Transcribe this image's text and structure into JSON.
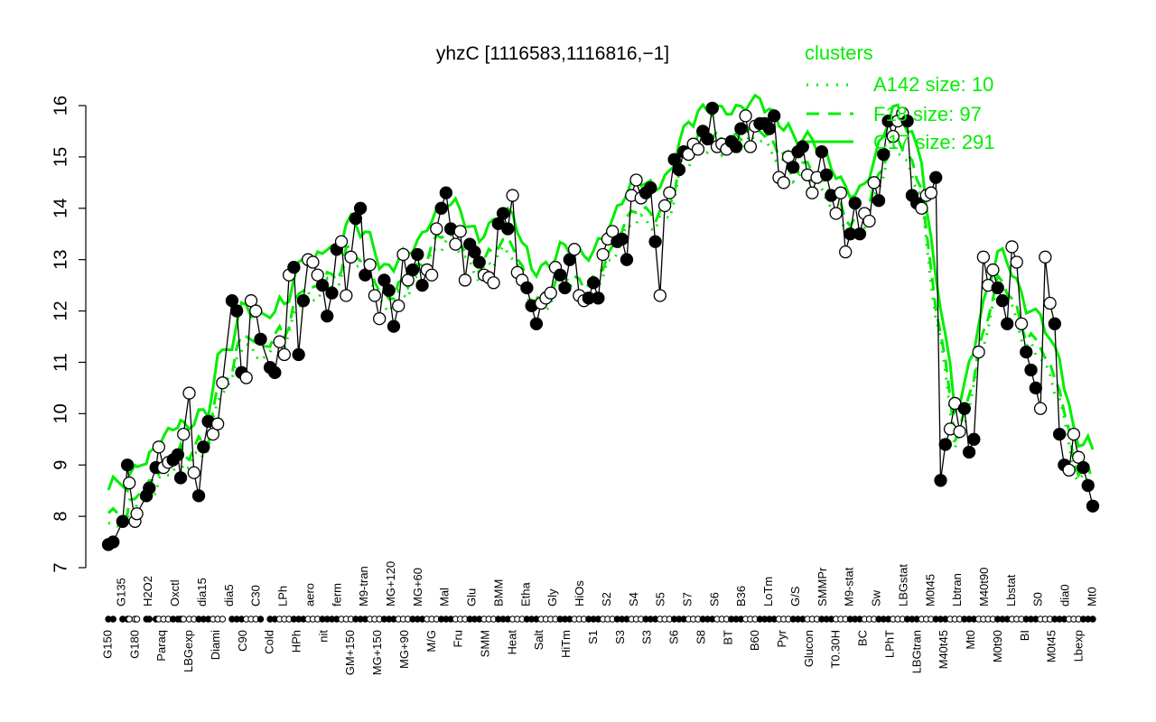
{
  "chart_data": {
    "type": "line",
    "title": "yhzC [1116583,1116816,−1]",
    "xlabel": "",
    "ylabel": "",
    "ylim": [
      7,
      16
    ],
    "y_ticks": [
      7,
      8,
      9,
      10,
      11,
      12,
      13,
      14,
      15,
      16
    ],
    "grid": false,
    "legend": {
      "position": "top-right",
      "title": "clusters",
      "entries": [
        {
          "label": "A142 size: 10",
          "style": "dotted",
          "color": "#00ee00"
        },
        {
          "label": "F18 size: 97",
          "style": "dashed",
          "color": "#00ee00"
        },
        {
          "label": "C17 size: 291",
          "style": "solid",
          "color": "#00ee00"
        }
      ]
    },
    "x_tick_labels_visible": [
      "G150",
      "G135",
      "G180",
      "H2O2",
      "Paraq",
      "Oxctl",
      "LBGexp",
      "dia15",
      "Diami",
      "dia5",
      "C90",
      "C30",
      "Cold",
      "LPh",
      "HPh",
      "aero",
      "nit",
      "ferm",
      "GM+150",
      "M9-tran",
      "MG+150",
      "MG+120",
      "MG+90",
      "MG+60",
      "M/G",
      "Mal",
      "Fru",
      "Glu",
      "SMM",
      "BMM",
      "Heat",
      "Etha",
      "Salt",
      "Gly",
      "HiTm",
      "HiOs",
      "S1",
      "S2",
      "S3",
      "S4",
      "S3",
      "S5",
      "S6",
      "S7",
      "S8",
      "S6",
      "BT",
      "B36",
      "B60",
      "LoTm",
      "Pyr",
      "G/S",
      "Glucon",
      "SMMPr",
      "T0.30H",
      "M9-stat",
      "BC",
      "Sw",
      "LPhT",
      "LBGstat",
      "LBGtran",
      "M0t45",
      "M40t45",
      "Lbtran",
      "Mt0",
      "M40t90",
      "M0t90",
      "Lbstat",
      "BI",
      "S0",
      "M0t45",
      "dia0",
      "Lbexp",
      "Mt0"
    ],
    "series": [
      {
        "name": "yhzC expression",
        "style": "black line with filled/open circle markers",
        "points": [
          [
            0.02,
            7.45
          ],
          [
            0.025,
            7.5
          ],
          [
            0.035,
            7.9
          ],
          [
            0.04,
            9.0
          ],
          [
            0.042,
            8.65
          ],
          [
            0.048,
            7.9
          ],
          [
            0.05,
            8.05
          ],
          [
            0.06,
            8.4
          ],
          [
            0.063,
            8.55
          ],
          [
            0.07,
            8.95
          ],
          [
            0.073,
            9.35
          ],
          [
            0.078,
            8.95
          ],
          [
            0.083,
            9.05
          ],
          [
            0.088,
            9.1
          ],
          [
            0.093,
            9.2
          ],
          [
            0.096,
            8.75
          ],
          [
            0.099,
            9.6
          ],
          [
            0.105,
            10.4
          ],
          [
            0.11,
            8.85
          ],
          [
            0.115,
            8.4
          ],
          [
            0.12,
            9.35
          ],
          [
            0.125,
            9.85
          ],
          [
            0.13,
            9.6
          ],
          [
            0.135,
            9.8
          ],
          [
            0.14,
            10.6
          ],
          [
            0.15,
            12.2
          ],
          [
            0.155,
            12.0
          ],
          [
            0.16,
            10.8
          ],
          [
            0.165,
            10.7
          ],
          [
            0.17,
            12.2
          ],
          [
            0.175,
            12.0
          ],
          [
            0.18,
            11.45
          ],
          [
            0.19,
            10.9
          ],
          [
            0.195,
            10.8
          ],
          [
            0.2,
            11.4
          ],
          [
            0.205,
            11.15
          ],
          [
            0.21,
            12.7
          ],
          [
            0.215,
            12.85
          ],
          [
            0.22,
            11.15
          ],
          [
            0.225,
            12.2
          ],
          [
            0.23,
            13.0
          ],
          [
            0.235,
            12.95
          ],
          [
            0.24,
            12.7
          ],
          [
            0.245,
            12.5
          ],
          [
            0.25,
            11.9
          ],
          [
            0.255,
            12.35
          ],
          [
            0.26,
            13.2
          ],
          [
            0.265,
            13.35
          ],
          [
            0.27,
            12.3
          ],
          [
            0.275,
            13.05
          ],
          [
            0.28,
            13.8
          ],
          [
            0.285,
            14.0
          ],
          [
            0.29,
            12.7
          ],
          [
            0.295,
            12.9
          ],
          [
            0.3,
            12.3
          ],
          [
            0.305,
            11.85
          ],
          [
            0.31,
            12.6
          ],
          [
            0.315,
            12.4
          ],
          [
            0.32,
            11.7
          ],
          [
            0.325,
            12.1
          ],
          [
            0.33,
            13.1
          ],
          [
            0.335,
            12.6
          ],
          [
            0.34,
            12.8
          ],
          [
            0.345,
            13.1
          ],
          [
            0.35,
            12.5
          ],
          [
            0.355,
            12.8
          ],
          [
            0.36,
            12.7
          ],
          [
            0.365,
            13.6
          ],
          [
            0.37,
            14.0
          ],
          [
            0.375,
            14.3
          ],
          [
            0.38,
            13.6
          ],
          [
            0.385,
            13.3
          ],
          [
            0.39,
            13.55
          ],
          [
            0.395,
            12.6
          ],
          [
            0.4,
            13.3
          ],
          [
            0.405,
            13.15
          ],
          [
            0.41,
            12.95
          ],
          [
            0.415,
            12.7
          ],
          [
            0.42,
            12.65
          ],
          [
            0.425,
            12.55
          ],
          [
            0.43,
            13.7
          ],
          [
            0.435,
            13.9
          ],
          [
            0.44,
            13.6
          ],
          [
            0.445,
            14.25
          ],
          [
            0.45,
            12.75
          ],
          [
            0.455,
            12.6
          ],
          [
            0.46,
            12.45
          ],
          [
            0.465,
            12.1
          ],
          [
            0.47,
            11.75
          ],
          [
            0.475,
            12.15
          ],
          [
            0.48,
            12.25
          ],
          [
            0.485,
            12.35
          ],
          [
            0.49,
            12.85
          ],
          [
            0.495,
            12.7
          ],
          [
            0.5,
            12.45
          ],
          [
            0.505,
            13.0
          ],
          [
            0.51,
            13.2
          ],
          [
            0.515,
            12.3
          ],
          [
            0.52,
            12.2
          ],
          [
            0.525,
            12.25
          ],
          [
            0.53,
            12.55
          ],
          [
            0.535,
            12.25
          ],
          [
            0.54,
            13.1
          ],
          [
            0.545,
            13.4
          ],
          [
            0.55,
            13.55
          ],
          [
            0.555,
            13.35
          ],
          [
            0.56,
            13.4
          ],
          [
            0.565,
            13.0
          ],
          [
            0.57,
            14.25
          ],
          [
            0.575,
            14.55
          ],
          [
            0.58,
            14.2
          ],
          [
            0.585,
            14.3
          ],
          [
            0.59,
            14.4
          ],
          [
            0.595,
            13.35
          ],
          [
            0.6,
            12.3
          ],
          [
            0.605,
            14.05
          ],
          [
            0.61,
            14.3
          ],
          [
            0.615,
            14.95
          ],
          [
            0.62,
            14.75
          ],
          [
            0.625,
            15.1
          ],
          [
            0.63,
            15.05
          ],
          [
            0.635,
            15.25
          ],
          [
            0.64,
            15.15
          ],
          [
            0.645,
            15.5
          ],
          [
            0.65,
            15.35
          ],
          [
            0.655,
            15.95
          ],
          [
            0.66,
            15.2
          ],
          [
            0.665,
            15.25
          ],
          [
            0.67,
            15.15
          ],
          [
            0.675,
            15.3
          ],
          [
            0.68,
            15.2
          ],
          [
            0.685,
            15.55
          ],
          [
            0.69,
            15.8
          ],
          [
            0.695,
            15.2
          ],
          [
            0.7,
            15.6
          ],
          [
            0.705,
            15.65
          ],
          [
            0.71,
            15.65
          ],
          [
            0.715,
            15.55
          ],
          [
            0.72,
            15.8
          ],
          [
            0.725,
            14.6
          ],
          [
            0.73,
            14.5
          ],
          [
            0.735,
            15.0
          ],
          [
            0.74,
            14.8
          ],
          [
            0.745,
            15.1
          ],
          [
            0.75,
            15.2
          ],
          [
            0.755,
            14.65
          ],
          [
            0.76,
            14.3
          ],
          [
            0.765,
            14.6
          ],
          [
            0.77,
            15.1
          ],
          [
            0.775,
            14.65
          ],
          [
            0.78,
            14.25
          ],
          [
            0.785,
            13.9
          ],
          [
            0.79,
            14.3
          ],
          [
            0.795,
            13.15
          ],
          [
            0.8,
            13.5
          ],
          [
            0.805,
            14.1
          ],
          [
            0.81,
            13.5
          ],
          [
            0.815,
            13.9
          ],
          [
            0.82,
            13.75
          ],
          [
            0.825,
            14.5
          ],
          [
            0.83,
            14.15
          ],
          [
            0.835,
            15.05
          ],
          [
            0.84,
            15.7
          ],
          [
            0.845,
            15.4
          ],
          [
            0.85,
            15.7
          ],
          [
            0.855,
            15.85
          ],
          [
            0.86,
            15.7
          ],
          [
            0.865,
            14.25
          ],
          [
            0.87,
            14.1
          ],
          [
            0.875,
            14.0
          ],
          [
            0.88,
            14.25
          ],
          [
            0.885,
            14.3
          ],
          [
            0.89,
            14.6
          ],
          [
            0.895,
            8.7
          ],
          [
            0.9,
            9.4
          ],
          [
            0.905,
            9.7
          ],
          [
            0.91,
            10.2
          ],
          [
            0.915,
            9.65
          ],
          [
            0.92,
            10.1
          ],
          [
            0.925,
            9.25
          ],
          [
            0.93,
            9.5
          ],
          [
            0.935,
            11.2
          ],
          [
            0.94,
            13.05
          ],
          [
            0.945,
            12.5
          ],
          [
            0.95,
            12.8
          ],
          [
            0.955,
            12.45
          ],
          [
            0.96,
            12.2
          ],
          [
            0.965,
            11.75
          ],
          [
            0.97,
            13.25
          ],
          [
            0.975,
            12.95
          ],
          [
            0.98,
            11.75
          ],
          [
            0.985,
            11.2
          ],
          [
            0.99,
            10.85
          ],
          [
            0.995,
            10.5
          ],
          [
            1.0,
            10.1
          ],
          [
            1.005,
            13.05
          ],
          [
            1.01,
            12.15
          ],
          [
            1.015,
            11.75
          ],
          [
            1.02,
            9.6
          ],
          [
            1.025,
            9.0
          ],
          [
            1.03,
            8.9
          ],
          [
            1.035,
            9.6
          ],
          [
            1.04,
            9.15
          ],
          [
            1.045,
            8.95
          ],
          [
            1.05,
            8.6
          ],
          [
            1.055,
            8.2
          ]
        ]
      },
      {
        "name": "C17 size: 291",
        "style": "solid",
        "color": "#00ee00",
        "summary": "cluster mean profile; ~10.0 at left rising to ~15.7 near S3/S4, dips to ~13.5 at BT, ~16.1 peak near M9-stat, drops to ~11.2 at LBGstat, ~14.3 peak near M0t90, ends ~10.7"
      },
      {
        "name": "F18 size: 97",
        "style": "dashed",
        "color": "#00ee00",
        "summary": "cluster mean profile; ~9.3 at left, ~15.2 near S4, dips to ~12.4 near S8/BT, ~15.8 peak near M9-stat, ~10.2 at LBGstat, ~12.8 near M0t90, ends ~9.8"
      },
      {
        "name": "A142 size: 10",
        "style": "dotted",
        "color": "#00ee00",
        "summary": "cluster mean profile; ~9.0 at left, ~15.5 near Etha, ~14.5 near S-series, ~15.6 peak near M9-stat, ~9.8 at LBGstat, ~12.0 near M40t90, ends ~9.3"
      }
    ]
  }
}
